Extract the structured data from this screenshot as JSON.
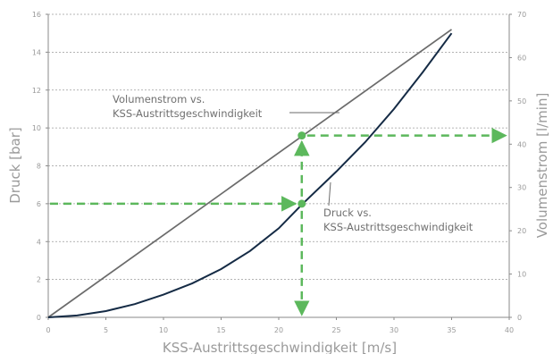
{
  "chart_data": {
    "type": "line",
    "xlabel": "KSS-Austrittsgeschwindigkeit [m/s]",
    "ylabel": "Druck [bar]",
    "y2label": "Volumenstrom [l/min]",
    "xlim": [
      0,
      40
    ],
    "ylim": [
      0,
      16
    ],
    "y2lim": [
      0,
      70
    ],
    "x_ticks": [
      0,
      5,
      10,
      15,
      20,
      25,
      30,
      35,
      40
    ],
    "y_ticks": [
      0,
      2,
      4,
      6,
      8,
      10,
      12,
      14,
      16
    ],
    "y2_ticks": [
      0,
      10,
      20,
      30,
      40,
      50,
      60,
      70
    ],
    "grid": "horizontal dashed",
    "series": [
      {
        "name": "Volumenstrom vs. KSS-Austrittsgeschwindigkeit",
        "axis": "right",
        "color": "#6b6b6b",
        "x": [
          0,
          35
        ],
        "y": [
          0,
          66.5
        ]
      },
      {
        "name": "Druck vs. KSS-Austrittsgeschwindigkeit",
        "axis": "left",
        "color": "#152b45",
        "x": [
          0,
          2.5,
          5,
          7.5,
          10,
          12.5,
          15,
          17.5,
          20,
          22,
          25,
          27.5,
          30,
          32.5,
          35
        ],
        "y": [
          0,
          0.1,
          0.33,
          0.7,
          1.2,
          1.8,
          2.55,
          3.5,
          4.7,
          5.95,
          7.7,
          9.25,
          11.0,
          12.95,
          15.0
        ]
      }
    ],
    "annotations": [
      {
        "lines": [
          "Volumenstrom vs.",
          "KSS-Austrittsgeschwindigkeit"
        ]
      },
      {
        "lines": [
          "Druck vs.",
          "KSS-Austrittsgeschwindigkeit"
        ]
      }
    ],
    "markers": [
      {
        "axis": "left",
        "x": 22,
        "y": 6
      },
      {
        "axis": "left",
        "x": 22,
        "y": 9.6
      }
    ],
    "guide_color": "#5cb85c"
  }
}
